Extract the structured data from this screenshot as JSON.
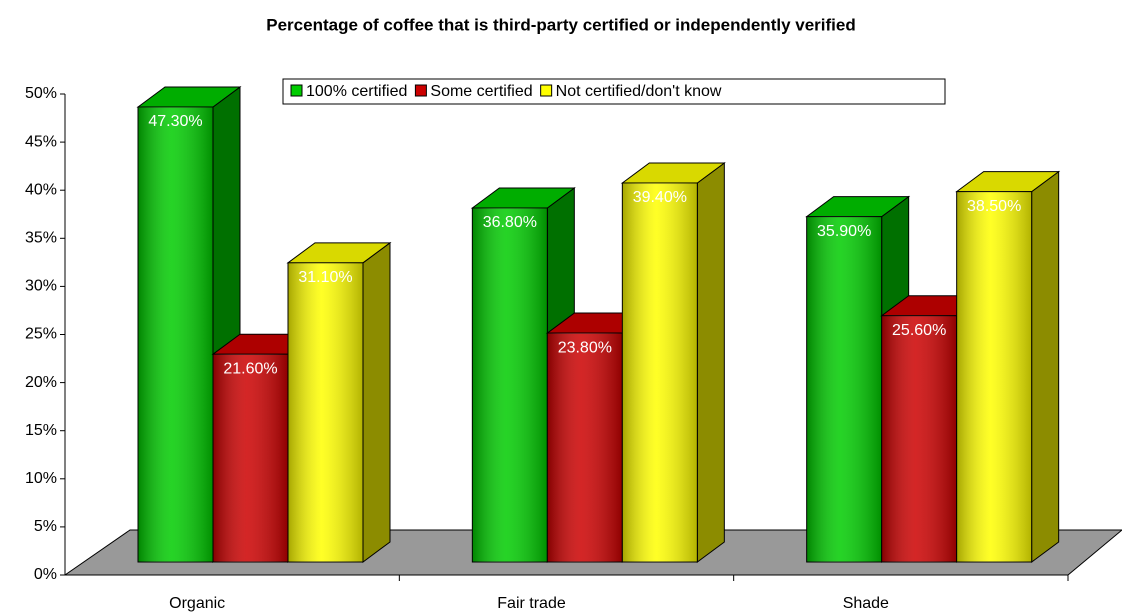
{
  "chart_data": {
    "type": "bar3d",
    "title": "Percentage of coffee that is third-party certified or independently verified",
    "categories": [
      "Organic",
      "Fair trade",
      "Shade"
    ],
    "series": [
      {
        "name": "100% certified",
        "color": "#00cc00",
        "values": [
          47.3,
          36.8,
          35.9
        ],
        "value_labels": [
          "47.30%",
          "36.80%",
          "35.90%"
        ]
      },
      {
        "name": "Some certified",
        "color": "#cc0000",
        "values": [
          21.6,
          23.8,
          25.6
        ],
        "value_labels": [
          "21.60%",
          "23.80%",
          "25.60%"
        ]
      },
      {
        "name": "Not certified/don't know",
        "color": "#ffff00",
        "values": [
          31.1,
          39.4,
          38.5
        ],
        "value_labels": [
          "31.10%",
          "39.40%",
          "38.50%"
        ]
      }
    ],
    "ylim": [
      0,
      50
    ],
    "yticks": [
      {
        "value": 0,
        "label": "0%"
      },
      {
        "value": 5,
        "label": "5%"
      },
      {
        "value": 10,
        "label": "10%"
      },
      {
        "value": 15,
        "label": "15%"
      },
      {
        "value": 20,
        "label": "20%"
      },
      {
        "value": 25,
        "label": "25%"
      },
      {
        "value": 30,
        "label": "30%"
      },
      {
        "value": 35,
        "label": "35%"
      },
      {
        "value": 40,
        "label": "40%"
      },
      {
        "value": 45,
        "label": "45%"
      },
      {
        "value": 50,
        "label": "50%"
      }
    ],
    "legend": "top"
  }
}
